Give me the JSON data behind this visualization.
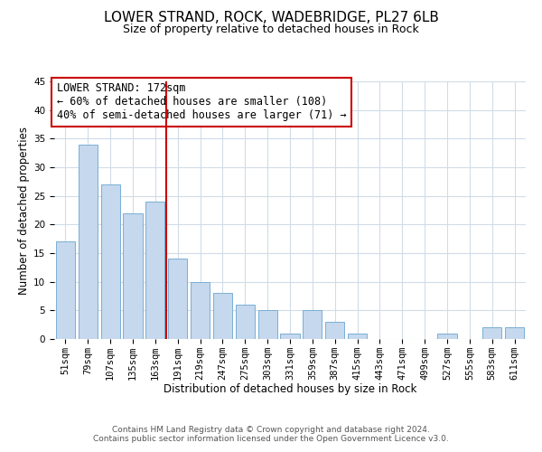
{
  "title": "LOWER STRAND, ROCK, WADEBRIDGE, PL27 6LB",
  "subtitle": "Size of property relative to detached houses in Rock",
  "xlabel": "Distribution of detached houses by size in Rock",
  "ylabel": "Number of detached properties",
  "bar_labels": [
    "51sqm",
    "79sqm",
    "107sqm",
    "135sqm",
    "163sqm",
    "191sqm",
    "219sqm",
    "247sqm",
    "275sqm",
    "303sqm",
    "331sqm",
    "359sqm",
    "387sqm",
    "415sqm",
    "443sqm",
    "471sqm",
    "499sqm",
    "527sqm",
    "555sqm",
    "583sqm",
    "611sqm"
  ],
  "bar_values": [
    17,
    34,
    27,
    22,
    24,
    14,
    10,
    8,
    6,
    5,
    1,
    5,
    3,
    1,
    0,
    0,
    0,
    1,
    0,
    2,
    2
  ],
  "bar_color": "#c5d8ed",
  "bar_edge_color": "#7aafd4",
  "vline_color": "#cc0000",
  "annotation_text": "LOWER STRAND: 172sqm\n← 60% of detached houses are smaller (108)\n40% of semi-detached houses are larger (71) →",
  "annotation_box_color": "#ffffff",
  "annotation_box_edge_color": "#cc0000",
  "ylim": [
    0,
    45
  ],
  "yticks": [
    0,
    5,
    10,
    15,
    20,
    25,
    30,
    35,
    40,
    45
  ],
  "footer_line1": "Contains HM Land Registry data © Crown copyright and database right 2024.",
  "footer_line2": "Contains public sector information licensed under the Open Government Licence v3.0.",
  "bg_color": "#ffffff",
  "grid_color": "#d0dce8",
  "title_fontsize": 11,
  "subtitle_fontsize": 9,
  "axis_label_fontsize": 8.5,
  "tick_fontsize": 7.5,
  "annotation_fontsize": 8.5,
  "footer_fontsize": 6.5
}
